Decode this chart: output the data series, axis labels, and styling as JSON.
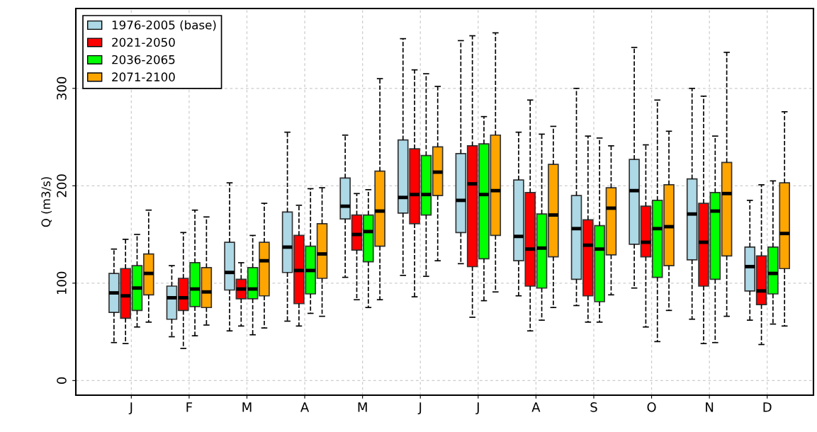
{
  "chart_data": {
    "type": "box",
    "ylabel": "Q (m3/s)",
    "categories": [
      "J",
      "F",
      "M",
      "A",
      "M",
      "J",
      "J",
      "A",
      "S",
      "O",
      "N",
      "D"
    ],
    "ylim": [
      -15,
      382
    ],
    "yticks": [
      0,
      100,
      200,
      300
    ],
    "grid": true,
    "legend": "top left",
    "line_style": "dashed",
    "series": [
      {
        "name": "1976-2005 (base)",
        "color": "#add8e6",
        "boxes": [
          {
            "low": 39,
            "q1": 70,
            "median": 90,
            "q3": 110,
            "high": 135
          },
          {
            "low": 45,
            "q1": 63,
            "median": 85,
            "q3": 97,
            "high": 118
          },
          {
            "low": 51,
            "q1": 93,
            "median": 111,
            "q3": 142,
            "high": 203
          },
          {
            "low": 61,
            "q1": 111,
            "median": 137,
            "q3": 173,
            "high": 255
          },
          {
            "low": 106,
            "q1": 166,
            "median": 179,
            "q3": 208,
            "high": 252
          },
          {
            "low": 108,
            "q1": 172,
            "median": 188,
            "q3": 247,
            "high": 351
          },
          {
            "low": 120,
            "q1": 152,
            "median": 185,
            "q3": 233,
            "high": 349
          },
          {
            "low": 87,
            "q1": 123,
            "median": 148,
            "q3": 206,
            "high": 255
          },
          {
            "low": 77,
            "q1": 104,
            "median": 156,
            "q3": 190,
            "high": 300
          },
          {
            "low": 95,
            "q1": 140,
            "median": 195,
            "q3": 227,
            "high": 342
          },
          {
            "low": 63,
            "q1": 124,
            "median": 171,
            "q3": 207,
            "high": 300
          },
          {
            "low": 62,
            "q1": 92,
            "median": 117,
            "q3": 137,
            "high": 185
          }
        ]
      },
      {
        "name": "2021-2050",
        "color": "#ff0000",
        "boxes": [
          {
            "low": 38,
            "q1": 64,
            "median": 87,
            "q3": 115,
            "high": 145
          },
          {
            "low": 33,
            "q1": 72,
            "median": 85,
            "q3": 105,
            "high": 152
          },
          {
            "low": 56,
            "q1": 84,
            "median": 94,
            "q3": 104,
            "high": 121
          },
          {
            "low": 56,
            "q1": 79,
            "median": 113,
            "q3": 149,
            "high": 180
          },
          {
            "low": 83,
            "q1": 134,
            "median": 150,
            "q3": 170,
            "high": 192
          },
          {
            "low": 86,
            "q1": 161,
            "median": 191,
            "q3": 238,
            "high": 319
          },
          {
            "low": 65,
            "q1": 117,
            "median": 202,
            "q3": 241,
            "high": 354
          },
          {
            "low": 51,
            "q1": 97,
            "median": 135,
            "q3": 193,
            "high": 288
          },
          {
            "low": 60,
            "q1": 87,
            "median": 139,
            "q3": 165,
            "high": 251
          },
          {
            "low": 55,
            "q1": 127,
            "median": 142,
            "q3": 179,
            "high": 242
          },
          {
            "low": 38,
            "q1": 97,
            "median": 142,
            "q3": 182,
            "high": 292
          },
          {
            "low": 37,
            "q1": 78,
            "median": 92,
            "q3": 128,
            "high": 201
          }
        ]
      },
      {
        "name": "2036-2065",
        "color": "#00ff00",
        "boxes": [
          {
            "low": 55,
            "q1": 72,
            "median": 95,
            "q3": 118,
            "high": 150
          },
          {
            "low": 46,
            "q1": 76,
            "median": 94,
            "q3": 121,
            "high": 175
          },
          {
            "low": 47,
            "q1": 84,
            "median": 94,
            "q3": 116,
            "high": 149
          },
          {
            "low": 69,
            "q1": 89,
            "median": 113,
            "q3": 138,
            "high": 197
          },
          {
            "low": 75,
            "q1": 122,
            "median": 153,
            "q3": 170,
            "high": 196
          },
          {
            "low": 107,
            "q1": 170,
            "median": 191,
            "q3": 231,
            "high": 315
          },
          {
            "low": 82,
            "q1": 125,
            "median": 191,
            "q3": 243,
            "high": 271
          },
          {
            "low": 62,
            "q1": 95,
            "median": 136,
            "q3": 171,
            "high": 253
          },
          {
            "low": 60,
            "q1": 81,
            "median": 135,
            "q3": 159,
            "high": 249
          },
          {
            "low": 40,
            "q1": 106,
            "median": 156,
            "q3": 185,
            "high": 288
          },
          {
            "low": 39,
            "q1": 104,
            "median": 174,
            "q3": 193,
            "high": 251
          },
          {
            "low": 58,
            "q1": 89,
            "median": 110,
            "q3": 137,
            "high": 205
          }
        ]
      },
      {
        "name": "2071-2100",
        "color": "#ffa500",
        "boxes": [
          {
            "low": 60,
            "q1": 88,
            "median": 110,
            "q3": 130,
            "high": 175
          },
          {
            "low": 57,
            "q1": 75,
            "median": 91,
            "q3": 116,
            "high": 168
          },
          {
            "low": 54,
            "q1": 87,
            "median": 123,
            "q3": 142,
            "high": 182
          },
          {
            "low": 66,
            "q1": 105,
            "median": 130,
            "q3": 161,
            "high": 198
          },
          {
            "low": 83,
            "q1": 138,
            "median": 174,
            "q3": 215,
            "high": 310
          },
          {
            "low": 123,
            "q1": 190,
            "median": 214,
            "q3": 240,
            "high": 302
          },
          {
            "low": 91,
            "q1": 149,
            "median": 195,
            "q3": 252,
            "high": 357
          },
          {
            "low": 75,
            "q1": 127,
            "median": 170,
            "q3": 222,
            "high": 261
          },
          {
            "low": 88,
            "q1": 129,
            "median": 177,
            "q3": 198,
            "high": 241
          },
          {
            "low": 72,
            "q1": 118,
            "median": 158,
            "q3": 201,
            "high": 256
          },
          {
            "low": 66,
            "q1": 128,
            "median": 192,
            "q3": 224,
            "high": 337
          },
          {
            "low": 56,
            "q1": 115,
            "median": 151,
            "q3": 203,
            "high": 276
          }
        ]
      }
    ]
  }
}
